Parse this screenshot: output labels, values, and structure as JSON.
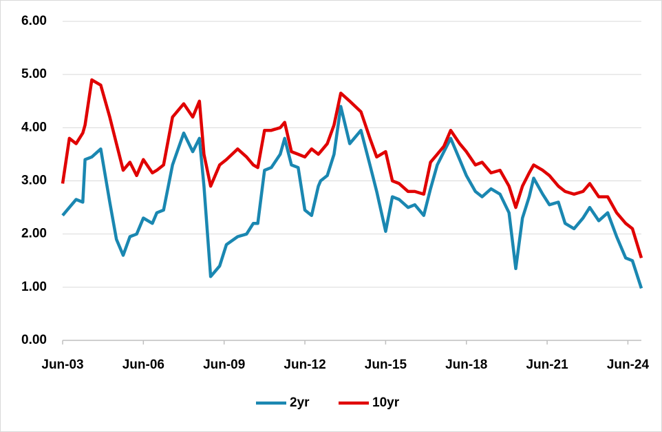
{
  "chart_data": {
    "type": "line",
    "x": [
      "2003-06",
      "2003-09",
      "2003-12",
      "2004-03",
      "2004-04",
      "2004-07",
      "2004-11",
      "2005-03",
      "2005-06",
      "2005-09",
      "2005-12",
      "2006-03",
      "2006-06",
      "2006-10",
      "2006-12",
      "2007-03",
      "2007-07",
      "2007-12",
      "2008-04",
      "2008-07",
      "2008-09",
      "2008-12",
      "2009-04",
      "2009-07",
      "2009-12",
      "2010-04",
      "2010-07",
      "2010-09",
      "2010-12",
      "2011-03",
      "2011-07",
      "2011-09",
      "2011-12",
      "2012-03",
      "2012-06",
      "2012-09",
      "2012-12",
      "2013-01",
      "2013-04",
      "2013-07",
      "2013-10",
      "2014-02",
      "2014-07",
      "2014-11",
      "2015-02",
      "2015-06",
      "2015-09",
      "2015-12",
      "2016-04",
      "2016-07",
      "2016-11",
      "2017-02",
      "2017-05",
      "2017-08",
      "2017-11",
      "2018-03",
      "2018-06",
      "2018-10",
      "2019-01",
      "2019-05",
      "2019-09",
      "2020-01",
      "2020-04",
      "2020-07",
      "2020-10",
      "2020-12",
      "2021-04",
      "2021-07",
      "2021-11",
      "2022-02",
      "2022-06",
      "2022-10",
      "2023-01",
      "2023-05",
      "2023-09",
      "2024-01",
      "2024-05",
      "2024-08",
      "2024-12"
    ],
    "series": [
      {
        "name": "2yr",
        "color": "#1a87b1",
        "values": [
          2.35,
          2.5,
          2.65,
          2.6,
          3.4,
          3.45,
          3.6,
          2.6,
          1.9,
          1.6,
          1.95,
          2.0,
          2.3,
          2.2,
          2.4,
          2.45,
          3.3,
          3.9,
          3.55,
          3.8,
          2.9,
          1.2,
          1.4,
          1.8,
          1.95,
          2.0,
          2.2,
          2.2,
          3.2,
          3.25,
          3.5,
          3.8,
          3.3,
          3.25,
          2.45,
          2.35,
          2.9,
          3.0,
          3.1,
          3.5,
          4.4,
          3.7,
          3.95,
          3.3,
          2.8,
          2.05,
          2.7,
          2.65,
          2.5,
          2.55,
          2.35,
          2.85,
          3.3,
          3.55,
          3.8,
          3.4,
          3.1,
          2.8,
          2.7,
          2.85,
          2.75,
          2.4,
          1.35,
          2.3,
          2.7,
          3.05,
          2.75,
          2.55,
          2.6,
          2.2,
          2.1,
          2.3,
          2.5,
          2.25,
          2.4,
          1.95,
          1.55,
          1.5,
          0.98
        ]
      },
      {
        "name": "10yr",
        "color": "#e00000",
        "values": [
          2.95,
          3.8,
          3.7,
          3.9,
          4.05,
          4.9,
          4.8,
          4.2,
          3.7,
          3.2,
          3.35,
          3.1,
          3.4,
          3.15,
          3.2,
          3.3,
          4.2,
          4.45,
          4.2,
          4.5,
          3.5,
          2.9,
          3.3,
          3.4,
          3.6,
          3.45,
          3.3,
          3.25,
          3.95,
          3.95,
          4.0,
          4.1,
          3.55,
          3.5,
          3.45,
          3.6,
          3.5,
          3.55,
          3.7,
          4.05,
          4.65,
          4.5,
          4.3,
          3.8,
          3.45,
          3.55,
          3.0,
          2.95,
          2.8,
          2.8,
          2.75,
          3.35,
          3.5,
          3.65,
          3.95,
          3.7,
          3.55,
          3.3,
          3.35,
          3.15,
          3.2,
          2.9,
          2.5,
          2.9,
          3.15,
          3.3,
          3.2,
          3.1,
          2.9,
          2.8,
          2.75,
          2.8,
          2.95,
          2.7,
          2.7,
          2.4,
          2.2,
          2.1,
          1.55
        ]
      }
    ],
    "xlim": [
      "2003-06",
      "2024-12"
    ],
    "xticks": [
      {
        "value": "2003-06",
        "label": "Jun-03"
      },
      {
        "value": "2006-06",
        "label": "Jun-06"
      },
      {
        "value": "2009-06",
        "label": "Jun-09"
      },
      {
        "value": "2012-06",
        "label": "Jun-12"
      },
      {
        "value": "2015-06",
        "label": "Jun-15"
      },
      {
        "value": "2018-06",
        "label": "Jun-18"
      },
      {
        "value": "2021-06",
        "label": "Jun-21"
      },
      {
        "value": "2024-06",
        "label": "Jun-24"
      }
    ],
    "ylim": [
      0,
      6
    ],
    "yticks": [
      {
        "value": 0,
        "label": "0.00"
      },
      {
        "value": 1,
        "label": "1.00"
      },
      {
        "value": 2,
        "label": "2.00"
      },
      {
        "value": 3,
        "label": "3.00"
      },
      {
        "value": 4,
        "label": "4.00"
      },
      {
        "value": 5,
        "label": "5.00"
      },
      {
        "value": 6,
        "label": "6.00"
      }
    ],
    "grid": true,
    "legend": "bottom"
  }
}
